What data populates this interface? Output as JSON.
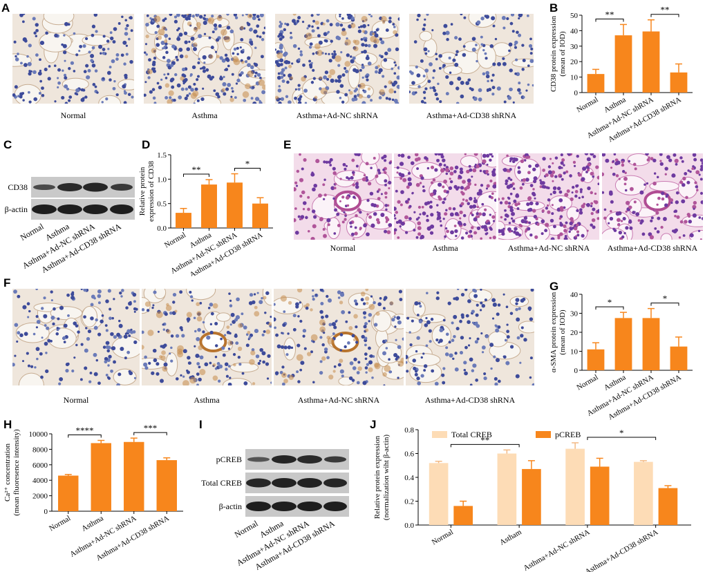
{
  "panel_labels": [
    "A",
    "B",
    "C",
    "D",
    "E",
    "F",
    "G",
    "H",
    "I",
    "J"
  ],
  "panel_a": {
    "captions": [
      "Normal",
      "Asthma",
      "Asthma+Ad-NC shRNA",
      "Asthma+Ad-CD38 shRNA"
    ]
  },
  "panel_c": {
    "bands": [
      "CD38",
      "β-actin"
    ],
    "lanes": [
      "Normal",
      "Asthma",
      "Asthma+Ad-NC shRNA",
      "Asthma+Ad-CD38 shRNA"
    ]
  },
  "panel_e": {
    "captions": [
      "Normal",
      "Asthma",
      "Asthma+Ad-NC shRNA",
      "Asthma+Ad-CD38 shRNA"
    ]
  },
  "panel_f": {
    "captions": [
      "Normal",
      "Asthma",
      "Asthma+Ad-NC shRNA",
      "Asthma+Ad-CD38 shRNA"
    ]
  },
  "panel_i": {
    "bands": [
      "pCREB",
      "Total CREB",
      "β-actin"
    ],
    "lanes": [
      "Normal",
      "Asthma",
      "Asthma+Ad-NC shRNA",
      "Asthma+Ad-CD38 shRNA"
    ]
  },
  "colors": {
    "orange": "#f7861c",
    "peach": "#fddcb6",
    "ihc_bg": "#efe6dc",
    "he_bg": "#f3dcea"
  },
  "chart_data": [
    {
      "id": "B",
      "type": "bar",
      "categories": [
        "Normal",
        "Asthma",
        "Asthma+Ad-NC shRNA",
        "Asthma+Ad-CD38 shRNA"
      ],
      "values": [
        12,
        37,
        39.5,
        13
      ],
      "errors": [
        3,
        7,
        7.5,
        5.5
      ],
      "ylabel": [
        "CD38 protein expression",
        "(mean of IOD)"
      ],
      "ylim": [
        0,
        50
      ],
      "yticks": [
        0,
        10,
        20,
        30,
        40,
        50
      ],
      "significance": [
        {
          "from": 0,
          "to": 1,
          "label": "**"
        },
        {
          "from": 2,
          "to": 3,
          "label": "**"
        }
      ]
    },
    {
      "id": "D",
      "type": "bar",
      "categories": [
        "Normal",
        "Asthma",
        "Asthma+Ad-NC shRNA",
        "Asthma+Ad-CD38 shRNA"
      ],
      "values": [
        0.31,
        0.89,
        0.93,
        0.5
      ],
      "errors": [
        0.09,
        0.1,
        0.18,
        0.12
      ],
      "ylabel": [
        "Relative protein",
        "expression of CD38"
      ],
      "ylim": [
        0,
        1.5
      ],
      "yticks": [
        0.0,
        0.5,
        1.0,
        1.5
      ],
      "significance": [
        {
          "from": 0,
          "to": 1,
          "label": "**"
        },
        {
          "from": 2,
          "to": 3,
          "label": "*"
        }
      ]
    },
    {
      "id": "G",
      "type": "bar",
      "categories": [
        "Normal",
        "Asthma",
        "Asthma+Ad-NC shRNA",
        "Asthma+Ad-CD38 shRNA"
      ],
      "values": [
        11,
        27.5,
        27.5,
        12.5
      ],
      "errors": [
        3.5,
        3,
        5,
        5
      ],
      "ylabel": [
        "α-SMA protein expression",
        "(mean of IOD)"
      ],
      "ylim": [
        0,
        40
      ],
      "yticks": [
        0,
        10,
        20,
        30,
        40
      ],
      "significance": [
        {
          "from": 0,
          "to": 1,
          "label": "*"
        },
        {
          "from": 2,
          "to": 3,
          "label": "*"
        }
      ]
    },
    {
      "id": "H",
      "type": "bar",
      "categories": [
        "Normal",
        "Asthma",
        "Asthma+Ad-NC shRNA",
        "Asthma+Ad-CD38 shRNA"
      ],
      "values": [
        4600,
        8800,
        8950,
        6600
      ],
      "errors": [
        150,
        350,
        500,
        300
      ],
      "ylabel": [
        "Ca²⁺ concentration",
        "(mean fluoresence intensity)"
      ],
      "ylim": [
        0,
        10000
      ],
      "yticks": [
        0,
        2000,
        4000,
        6000,
        8000,
        10000
      ],
      "significance": [
        {
          "from": 0,
          "to": 1,
          "label": "****"
        },
        {
          "from": 2,
          "to": 3,
          "label": "***"
        }
      ]
    },
    {
      "id": "J",
      "type": "bar",
      "categories": [
        "Normal",
        "Astham",
        "Asthma+Ad-NC shRNA",
        "Asthma+Ad-CD38 shRNA"
      ],
      "series": [
        {
          "name": "Total CREB",
          "values": [
            0.52,
            0.6,
            0.64,
            0.53
          ],
          "errors": [
            0.015,
            0.03,
            0.05,
            0.01
          ]
        },
        {
          "name": "pCREB",
          "values": [
            0.16,
            0.47,
            0.49,
            0.31
          ],
          "errors": [
            0.04,
            0.07,
            0.07,
            0.02
          ]
        }
      ],
      "ylabel": [
        "Relative protein expression",
        "(normalization wiht β-actin)"
      ],
      "ylim": [
        0,
        0.8
      ],
      "yticks": [
        0.0,
        0.2,
        0.4,
        0.6,
        0.8
      ],
      "legend": "top",
      "significance": [
        {
          "from": 0,
          "to": 1,
          "label": "**"
        },
        {
          "from": 2,
          "to": 3,
          "label": "*"
        }
      ]
    }
  ]
}
